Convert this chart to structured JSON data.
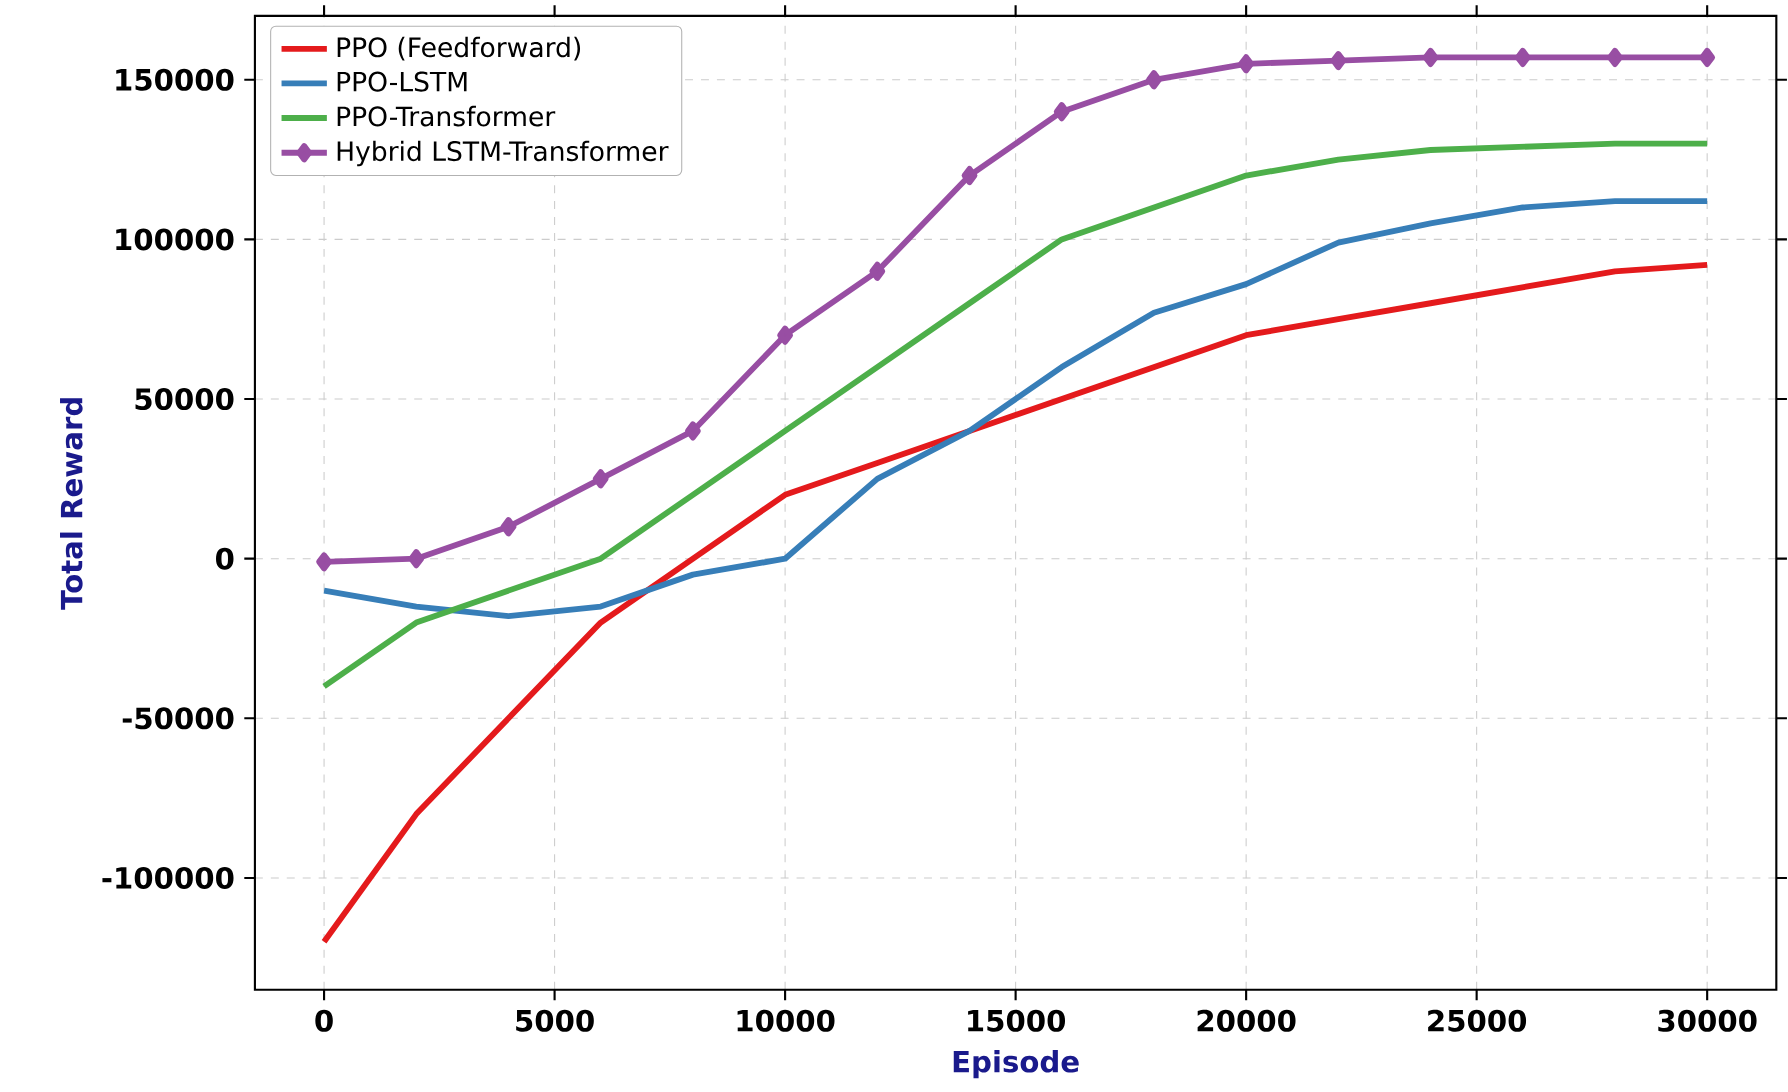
{
  "chart_data": {
    "type": "line",
    "xlabel": "Episode",
    "ylabel": "Total Reward",
    "x": [
      0,
      2000,
      4000,
      6000,
      8000,
      10000,
      12000,
      14000,
      16000,
      18000,
      20000,
      22000,
      24000,
      26000,
      28000,
      30000
    ],
    "series": [
      {
        "name": "PPO (Feedforward)",
        "color": "#e41a1c",
        "marker": "none",
        "values": [
          -120000,
          -80000,
          -50000,
          -20000,
          0,
          20000,
          30000,
          40000,
          50000,
          60000,
          70000,
          75000,
          80000,
          85000,
          90000,
          92000
        ]
      },
      {
        "name": "PPO-LSTM",
        "color": "#377eb8",
        "marker": "none",
        "values": [
          -10000,
          -15000,
          -18000,
          -15000,
          -5000,
          0,
          25000,
          40000,
          60000,
          77000,
          86000,
          99000,
          105000,
          110000,
          112000,
          112000
        ]
      },
      {
        "name": "PPO-Transformer",
        "color": "#4daf4a",
        "marker": "none",
        "values": [
          -40000,
          -20000,
          -10000,
          0,
          20000,
          40000,
          60000,
          80000,
          100000,
          110000,
          120000,
          125000,
          128000,
          129000,
          130000,
          130000
        ]
      },
      {
        "name": "Hybrid LSTM-Transformer",
        "color": "#984ea3",
        "marker": "diamond",
        "values": [
          -1000,
          0,
          10000,
          25000,
          40000,
          70000,
          90000,
          120000,
          140000,
          150000,
          155000,
          156000,
          157000,
          157000,
          157000,
          157000
        ]
      }
    ],
    "xlim": [
      -1500,
      31500
    ],
    "ylim": [
      -135000,
      170000
    ],
    "xticks": [
      0,
      5000,
      10000,
      15000,
      20000,
      25000,
      30000
    ],
    "yticks": [
      -100000,
      -50000,
      0,
      50000,
      100000,
      150000
    ],
    "grid": true,
    "legend": "top left",
    "line_style": "solid"
  }
}
